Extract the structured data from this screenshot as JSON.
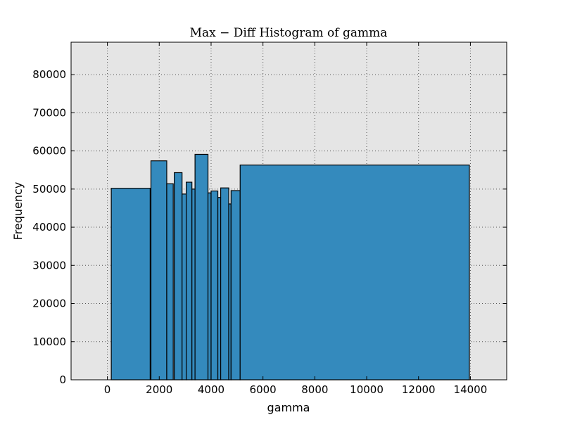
{
  "chart_data": {
    "type": "bar",
    "title": "Max − Diff Histogram of gamma",
    "xlabel": "gamma",
    "ylabel": "Frequency",
    "xlim": [
      -1400,
      15400
    ],
    "ylim": [
      0,
      88500
    ],
    "x_ticks": [
      0,
      2000,
      4000,
      6000,
      8000,
      10000,
      12000,
      14000
    ],
    "y_ticks": [
      0,
      10000,
      20000,
      30000,
      40000,
      50000,
      60000,
      70000,
      80000
    ],
    "grid": true,
    "bar_color": "#348abd",
    "background_color": "#e5e5e5",
    "bins": [
      {
        "x0": 150,
        "x1": 1650,
        "value": 50200
      },
      {
        "x0": 1680,
        "x1": 2290,
        "value": 57400
      },
      {
        "x0": 2290,
        "x1": 2540,
        "value": 51400
      },
      {
        "x0": 2580,
        "x1": 2880,
        "value": 54300
      },
      {
        "x0": 2880,
        "x1": 3040,
        "value": 48700
      },
      {
        "x0": 3040,
        "x1": 3260,
        "value": 51800
      },
      {
        "x0": 3260,
        "x1": 3380,
        "value": 50000
      },
      {
        "x0": 3380,
        "x1": 3880,
        "value": 59100
      },
      {
        "x0": 3880,
        "x1": 4000,
        "value": 49000
      },
      {
        "x0": 4000,
        "x1": 4260,
        "value": 49500
      },
      {
        "x0": 4260,
        "x1": 4370,
        "value": 47800
      },
      {
        "x0": 4370,
        "x1": 4680,
        "value": 50300
      },
      {
        "x0": 4680,
        "x1": 4770,
        "value": 46100
      },
      {
        "x0": 4770,
        "x1": 5120,
        "value": 49600
      },
      {
        "x0": 5120,
        "x1": 13960,
        "value": 56300
      }
    ]
  }
}
